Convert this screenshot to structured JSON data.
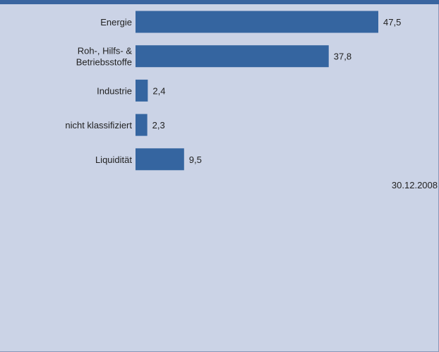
{
  "colors": {
    "bar": "#3565a0",
    "background": "#cbd3e6",
    "header": "#3a65a0"
  },
  "chart_data": {
    "type": "bar",
    "orientation": "horizontal",
    "categories": [
      "Energie",
      "Roh-, Hilfs- & Betriebsstoffe",
      "Industrie",
      "nicht klassifiziert",
      "Liquidität"
    ],
    "category_lines": [
      [
        "Energie"
      ],
      [
        "Roh-, Hilfs- &",
        "Betriebsstoffe"
      ],
      [
        "Industrie"
      ],
      [
        "nicht klassifiziert"
      ],
      [
        "Liquidität"
      ]
    ],
    "values": [
      47.5,
      37.8,
      2.4,
      2.3,
      9.5
    ],
    "value_labels": [
      "47,5",
      "37,8",
      "2,4",
      "2,3",
      "9,5"
    ],
    "xlim": [
      0,
      47.5
    ],
    "date": "30.12.2008",
    "grid": false,
    "legend": "none"
  }
}
